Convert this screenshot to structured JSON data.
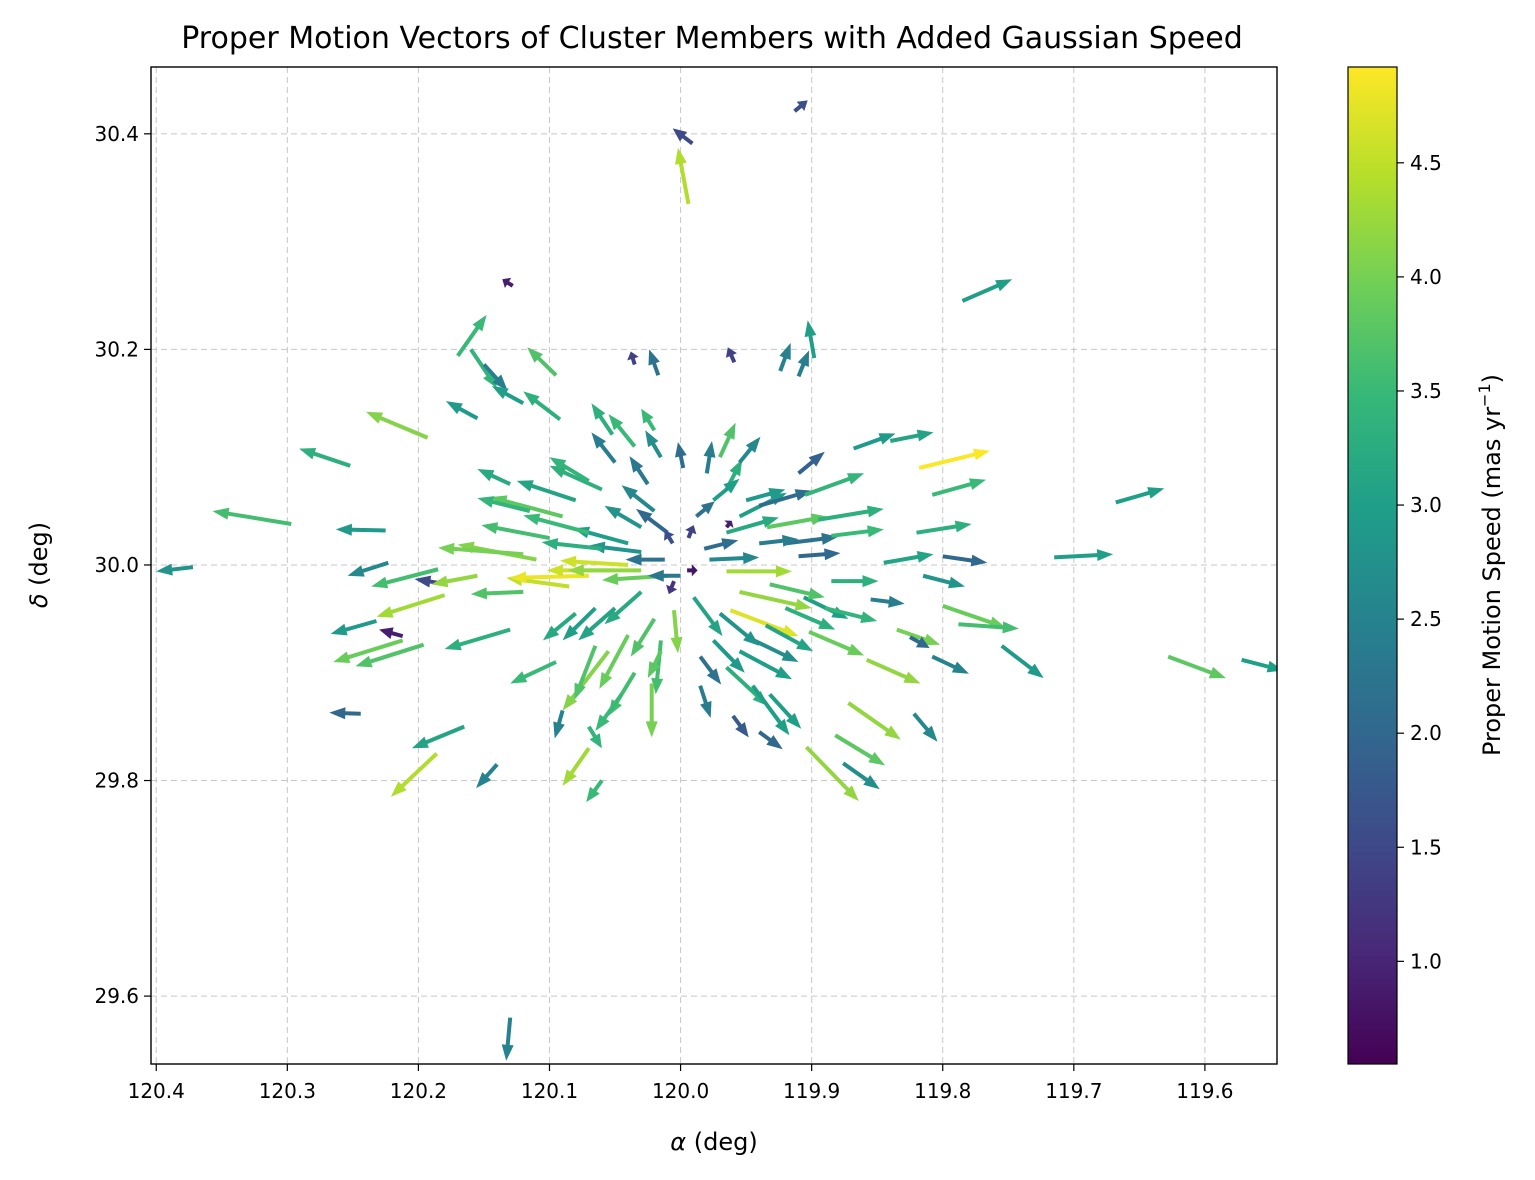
{
  "chart_data": {
    "type": "quiver",
    "title": "Proper Motion Vectors of Cluster Members with Added Gaussian Speed",
    "xlabel_symbol": "α",
    "xlabel_unit": " (deg)",
    "ylabel_symbol": "δ",
    "ylabel_unit": " (deg)",
    "colorbar_label": "Proper Motion Speed (mas yr",
    "colorbar_label_sup": "−1",
    "colorbar_label_close": ")",
    "colormap": "viridis",
    "colormap_stops": [
      "#440154",
      "#482878",
      "#3e4a89",
      "#31688e",
      "#26828e",
      "#1f9e89",
      "#35b779",
      "#6ece58",
      "#b5de2b",
      "#fde725"
    ],
    "xlim": [
      120.404,
      119.545
    ],
    "ylim": [
      29.537,
      30.462
    ],
    "clim": [
      0.55,
      4.92
    ],
    "x_inverted": true,
    "grid": true,
    "x_ticks": [
      120.4,
      120.3,
      120.2,
      120.1,
      120.0,
      119.9,
      119.8,
      119.7,
      119.6
    ],
    "x_tick_labels": [
      "120.4",
      "120.3",
      "120.2",
      "120.1",
      "120.0",
      "119.9",
      "119.8",
      "119.7",
      "119.6"
    ],
    "y_ticks": [
      29.6,
      29.8,
      30.0,
      30.2,
      30.4
    ],
    "y_tick_labels": [
      "29.6",
      "29.8",
      "30.0",
      "30.2",
      "30.4"
    ],
    "colorbar_ticks": [
      1.0,
      1.5,
      2.0,
      2.5,
      3.0,
      3.5,
      4.0,
      4.5
    ],
    "colorbar_tick_labels": [
      "1.0",
      "1.5",
      "2.0",
      "2.5",
      "3.0",
      "3.5",
      "4.0",
      "4.5"
    ],
    "vectors_note": "x, y = star position (deg); dx, dy = arrow extent in deg (alpha, delta); speed = mas/yr",
    "vectors": [
      [
        120.372,
        29.998,
        0.028,
        -0.004,
        2.8
      ],
      [
        120.297,
        30.038,
        0.06,
        0.012,
        3.6
      ],
      [
        120.252,
        30.092,
        0.039,
        0.016,
        3.3
      ],
      [
        120.193,
        30.118,
        0.047,
        0.024,
        4.1
      ],
      [
        120.225,
        30.032,
        0.038,
        0.001,
        2.9
      ],
      [
        120.223,
        30.002,
        0.031,
        -0.012,
        2.6
      ],
      [
        120.178,
        29.982,
        0.025,
        0.005,
        1.5
      ],
      [
        120.212,
        29.934,
        0.018,
        0.006,
        0.9
      ],
      [
        120.232,
        29.948,
        0.035,
        -0.012,
        2.9
      ],
      [
        120.196,
        29.926,
        0.052,
        -0.02,
        3.7
      ],
      [
        120.18,
        29.972,
        0.052,
        -0.02,
        4.3
      ],
      [
        120.185,
        29.996,
        0.051,
        -0.016,
        3.6
      ],
      [
        120.212,
        29.93,
        0.053,
        -0.02,
        3.9
      ],
      [
        120.244,
        29.862,
        0.024,
        0.001,
        2.0
      ],
      [
        120.165,
        29.85,
        0.04,
        -0.02,
        3.1
      ],
      [
        120.186,
        29.825,
        0.035,
        -0.04,
        4.4
      ],
      [
        120.14,
        29.815,
        0.016,
        -0.022,
        2.5
      ],
      [
        120.13,
        29.58,
        0.003,
        -0.04,
        2.5
      ],
      [
        120.16,
        30.2,
        -0.02,
        -0.036,
        3.4
      ],
      [
        120.15,
        30.186,
        -0.018,
        -0.024,
        2.4
      ],
      [
        120.17,
        30.194,
        -0.022,
        0.038,
        3.5
      ],
      [
        120.128,
        30.259,
        0.008,
        0.006,
        0.9
      ],
      [
        120.095,
        30.176,
        0.022,
        0.026,
        3.7
      ],
      [
        120.092,
        30.135,
        0.028,
        0.026,
        3.3
      ],
      [
        120.12,
        30.15,
        0.024,
        0.016,
        3.0
      ],
      [
        120.052,
        30.121,
        0.016,
        0.029,
        3.3
      ],
      [
        120.035,
        30.186,
        0.003,
        0.012,
        1.4
      ],
      [
        120.017,
        30.176,
        0.007,
        0.024,
        2.2
      ],
      [
        119.994,
        30.335,
        0.008,
        0.052,
        4.4
      ],
      [
        119.991,
        30.391,
        0.015,
        0.014,
        1.5
      ],
      [
        119.913,
        30.421,
        -0.01,
        0.01,
        1.6
      ],
      [
        119.959,
        30.188,
        0.005,
        0.014,
        1.4
      ],
      [
        119.924,
        30.18,
        -0.008,
        0.026,
        2.5
      ],
      [
        119.898,
        30.192,
        0.005,
        0.035,
        3.0
      ],
      [
        119.91,
        30.175,
        -0.008,
        0.024,
        2.4
      ],
      [
        119.785,
        30.245,
        -0.038,
        0.02,
        3.0
      ],
      [
        119.84,
        30.115,
        -0.033,
        0.008,
        3.1
      ],
      [
        119.818,
        30.09,
        -0.054,
        0.016,
        4.9
      ],
      [
        119.868,
        30.108,
        -0.032,
        0.014,
        2.9
      ],
      [
        119.808,
        30.065,
        -0.041,
        0.014,
        3.5
      ],
      [
        119.82,
        30.03,
        -0.042,
        0.008,
        3.3
      ],
      [
        119.8,
        30.008,
        -0.034,
        -0.006,
        2.0
      ],
      [
        119.715,
        30.007,
        -0.045,
        0.003,
        3.0
      ],
      [
        119.668,
        30.058,
        -0.037,
        0.013,
        3.0
      ],
      [
        119.628,
        29.915,
        -0.044,
        -0.02,
        3.8
      ],
      [
        119.572,
        29.912,
        -0.032,
        -0.01,
        3.0
      ],
      [
        119.755,
        29.925,
        -0.032,
        -0.03,
        2.9
      ],
      [
        119.835,
        29.94,
        -0.033,
        -0.014,
        4.0
      ],
      [
        119.8,
        29.962,
        -0.048,
        -0.02,
        3.9
      ],
      [
        119.788,
        29.945,
        -0.046,
        -0.004,
        3.6
      ],
      [
        119.808,
        29.915,
        -0.028,
        -0.016,
        2.5
      ],
      [
        119.815,
        29.99,
        -0.032,
        -0.01,
        2.8
      ],
      [
        119.845,
        30.002,
        -0.038,
        0.008,
        3.1
      ],
      [
        119.855,
        29.968,
        -0.026,
        -0.004,
        2.4
      ],
      [
        119.825,
        29.933,
        -0.015,
        -0.01,
        2.0
      ],
      [
        119.858,
        29.912,
        -0.041,
        -0.022,
        4.2
      ],
      [
        119.872,
        29.872,
        -0.04,
        -0.034,
        4.2
      ],
      [
        119.882,
        29.842,
        -0.038,
        -0.028,
        3.8
      ],
      [
        119.876,
        29.816,
        -0.028,
        -0.024,
        2.7
      ],
      [
        119.904,
        29.831,
        -0.04,
        -0.05,
        4.2
      ],
      [
        119.822,
        29.862,
        -0.018,
        -0.026,
        2.6
      ],
      [
        119.902,
        29.938,
        -0.042,
        -0.022,
        3.9
      ],
      [
        119.906,
        29.97,
        -0.034,
        -0.02,
        3.0
      ],
      [
        119.932,
        29.982,
        -0.042,
        -0.012,
        3.7
      ],
      [
        119.955,
        29.975,
        -0.055,
        -0.015,
        4.2
      ],
      [
        119.962,
        29.958,
        -0.052,
        -0.024,
        4.7
      ],
      [
        119.965,
        29.994,
        -0.05,
        0.0,
        4.3
      ],
      [
        119.978,
        30.005,
        -0.038,
        0.002,
        2.6
      ],
      [
        119.982,
        30.015,
        -0.026,
        0.008,
        2.1
      ],
      [
        119.965,
        30.03,
        -0.04,
        0.014,
        3.2
      ],
      [
        119.955,
        30.045,
        -0.036,
        0.022,
        3.0
      ],
      [
        119.94,
        30.055,
        -0.04,
        0.014,
        2.1
      ],
      [
        119.934,
        30.035,
        -0.046,
        0.01,
        3.8
      ],
      [
        119.92,
        30.02,
        -0.04,
        0.006,
        2.2
      ],
      [
        119.91,
        30.008,
        -0.032,
        0.003,
        2.0
      ],
      [
        119.905,
        30.065,
        -0.045,
        0.02,
        3.4
      ],
      [
        119.895,
        30.042,
        -0.05,
        0.01,
        3.3
      ],
      [
        119.885,
        30.027,
        -0.04,
        0.006,
        3.5
      ],
      [
        119.885,
        29.985,
        -0.036,
        0.0,
        3.3
      ],
      [
        119.89,
        29.96,
        -0.04,
        -0.012,
        3.4
      ],
      [
        119.92,
        29.96,
        -0.038,
        -0.02,
        3.3
      ],
      [
        119.935,
        29.944,
        -0.036,
        -0.024,
        3.1
      ],
      [
        119.944,
        29.93,
        -0.034,
        -0.02,
        2.7
      ],
      [
        119.955,
        29.92,
        -0.04,
        -0.026,
        3.0
      ],
      [
        119.97,
        29.955,
        -0.03,
        -0.03,
        2.8
      ],
      [
        119.99,
        29.97,
        -0.022,
        -0.036,
        3.1
      ],
      [
        119.975,
        29.93,
        -0.024,
        -0.03,
        2.9
      ],
      [
        119.965,
        29.905,
        -0.032,
        -0.036,
        3.3
      ],
      [
        119.945,
        29.888,
        -0.028,
        -0.046,
        3.0
      ],
      [
        119.985,
        29.915,
        -0.016,
        -0.026,
        2.2
      ],
      [
        119.985,
        29.888,
        -0.008,
        -0.03,
        2.4
      ],
      [
        119.96,
        29.86,
        -0.012,
        -0.02,
        1.8
      ],
      [
        119.94,
        29.845,
        -0.018,
        -0.016,
        2.0
      ],
      [
        119.932,
        29.88,
        -0.024,
        -0.032,
        3.0
      ],
      [
        120.005,
        29.958,
        -0.003,
        -0.04,
        4.1
      ],
      [
        120.015,
        29.93,
        0.004,
        -0.05,
        3.6
      ],
      [
        120.022,
        29.89,
        0.0,
        -0.05,
        4.0
      ],
      [
        120.015,
        29.92,
        0.01,
        -0.025,
        3.8
      ],
      [
        120.02,
        29.95,
        0.018,
        -0.035,
        3.7
      ],
      [
        120.04,
        29.935,
        0.022,
        -0.05,
        3.9
      ],
      [
        120.035,
        29.9,
        0.02,
        -0.04,
        3.6
      ],
      [
        120.055,
        29.92,
        0.035,
        -0.055,
        4.1
      ],
      [
        120.03,
        29.975,
        0.028,
        -0.03,
        3.2
      ],
      [
        120.05,
        29.96,
        0.028,
        -0.03,
        3.1
      ],
      [
        120.065,
        29.925,
        0.016,
        -0.05,
        3.7
      ],
      [
        120.065,
        29.96,
        0.025,
        -0.03,
        3.0
      ],
      [
        120.08,
        29.955,
        0.025,
        -0.025,
        3.2
      ],
      [
        120.085,
        29.98,
        0.048,
        0.008,
        4.5
      ],
      [
        120.07,
        29.99,
        0.06,
        -0.002,
        4.8
      ],
      [
        120.05,
        29.995,
        0.052,
        0.0,
        4.6
      ],
      [
        120.04,
        30.0,
        0.052,
        0.004,
        4.6
      ],
      [
        120.03,
        29.995,
        0.056,
        0.0,
        4.2
      ],
      [
        120.01,
        29.99,
        0.05,
        -0.004,
        3.9
      ],
      [
        120.0,
        29.99,
        0.025,
        0.0,
        2.3
      ],
      [
        120.012,
        30.005,
        0.03,
        0.0,
        2.2
      ],
      [
        120.03,
        30.012,
        0.04,
        0.006,
        2.8
      ],
      [
        120.04,
        30.02,
        0.042,
        0.014,
        3.0
      ],
      [
        120.06,
        30.015,
        0.046,
        0.006,
        3.3
      ],
      [
        120.07,
        30.03,
        0.05,
        0.016,
        3.5
      ],
      [
        120.09,
        30.045,
        0.055,
        0.018,
        3.8
      ],
      [
        120.1,
        30.025,
        0.052,
        0.012,
        3.6
      ],
      [
        120.11,
        30.005,
        0.06,
        0.014,
        4.1
      ],
      [
        120.12,
        30.01,
        0.065,
        0.006,
        4.0
      ],
      [
        120.08,
        30.06,
        0.045,
        0.018,
        3.1
      ],
      [
        120.06,
        30.07,
        0.04,
        0.022,
        3.3
      ],
      [
        120.03,
        30.035,
        0.028,
        0.02,
        2.8
      ],
      [
        120.02,
        30.05,
        0.025,
        0.024,
        2.6
      ],
      [
        120.01,
        30.03,
        0.024,
        0.022,
        2.0
      ],
      [
        120.025,
        30.075,
        0.014,
        0.026,
        2.3
      ],
      [
        120.05,
        30.095,
        0.018,
        0.028,
        2.4
      ],
      [
        120.07,
        30.078,
        0.03,
        0.022,
        3.4
      ],
      [
        120.035,
        30.11,
        0.02,
        0.03,
        3.5
      ],
      [
        120.015,
        30.1,
        0.012,
        0.025,
        2.7
      ],
      [
        119.998,
        30.09,
        0.004,
        0.024,
        2.1
      ],
      [
        119.98,
        30.085,
        -0.004,
        0.03,
        2.4
      ],
      [
        119.965,
        30.07,
        -0.012,
        0.028,
        3.3
      ],
      [
        119.955,
        30.095,
        -0.016,
        0.024,
        2.6
      ],
      [
        119.97,
        30.1,
        -0.012,
        0.032,
        3.7
      ],
      [
        119.975,
        30.06,
        -0.02,
        0.02,
        3.0
      ],
      [
        119.988,
        30.045,
        -0.014,
        0.014,
        2.2
      ],
      [
        119.994,
        30.025,
        -0.004,
        0.012,
        1.4
      ],
      [
        120.006,
        30.02,
        0.006,
        0.012,
        1.6
      ],
      [
        120.005,
        29.985,
        0.004,
        -0.012,
        1.2
      ],
      [
        119.995,
        29.995,
        -0.008,
        0.0,
        0.8
      ],
      [
        119.965,
        30.035,
        -0.004,
        0.006,
        0.9
      ],
      [
        120.155,
        30.136,
        0.024,
        0.016,
        2.9
      ],
      [
        120.13,
        30.075,
        0.025,
        0.014,
        3.2
      ],
      [
        120.115,
        30.05,
        0.04,
        0.012,
        3.4
      ],
      [
        120.02,
        30.125,
        0.01,
        0.02,
        3.5
      ],
      [
        119.95,
        30.06,
        -0.03,
        0.01,
        2.9
      ],
      [
        119.91,
        30.085,
        -0.02,
        0.02,
        1.9
      ],
      [
        120.155,
        29.99,
        0.035,
        -0.008,
        4.2
      ],
      [
        120.12,
        29.975,
        0.04,
        -0.002,
        3.7
      ],
      [
        120.13,
        29.94,
        0.05,
        -0.018,
        3.3
      ],
      [
        120.095,
        29.91,
        0.035,
        -0.02,
        3.5
      ],
      [
        120.045,
        29.88,
        0.02,
        -0.034,
        3.5
      ],
      [
        120.07,
        29.83,
        0.02,
        -0.035,
        4.3
      ],
      [
        120.09,
        29.865,
        0.006,
        -0.026,
        2.5
      ],
      [
        120.06,
        29.8,
        0.012,
        -0.02,
        3.5
      ],
      [
        120.07,
        29.85,
        -0.01,
        -0.02,
        3.4
      ],
      [
        119.94,
        30.02,
        -0.03,
        0.004,
        2.4
      ]
    ]
  }
}
